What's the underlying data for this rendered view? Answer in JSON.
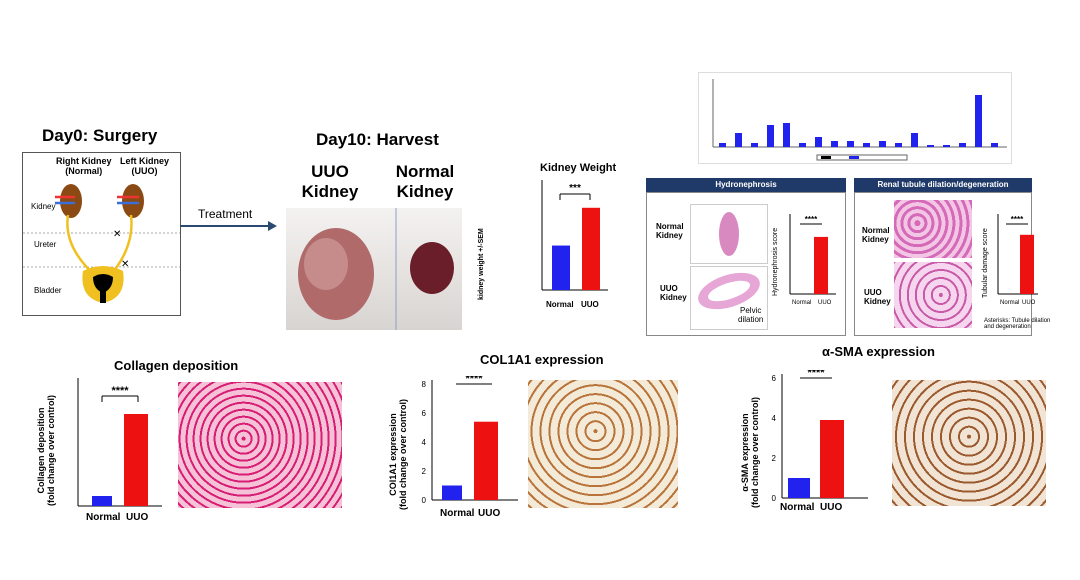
{
  "surgery": {
    "title": "Day0: Surgery",
    "right_kidney": "Right Kidney",
    "right_kidney_sub": "(Normal)",
    "left_kidney": "Left Kidney",
    "left_kidney_sub": "(UUO)",
    "label_kidney": "Kidney",
    "label_ureter": "Ureter",
    "label_bladder": "Bladder"
  },
  "treatment_label": "Treatment",
  "harvest": {
    "title": "Day10: Harvest",
    "uuo_label_1": "UUO",
    "uuo_label_2": "Kidney",
    "normal_label_1": "Normal",
    "normal_label_2": "Kidney"
  },
  "kidney_weight": {
    "title": "Kidney Weight",
    "ylabel": "kidney weight +/-SEM",
    "sig": "***",
    "categories": [
      "Normal",
      "UUO"
    ],
    "values": [
      200,
      370
    ],
    "colors": [
      "#2222ee",
      "#ee1111"
    ]
  },
  "hydronephrosis": {
    "header": "Hydronephrosis",
    "normal_1": "Normal",
    "normal_2": "Kidney",
    "uuo_1": "UUO",
    "uuo_2": "Kidney",
    "pelvic_1": "Pelvic",
    "pelvic_2": "dilation",
    "ylabel": "Hydronephrosis score",
    "sig": "****",
    "categories": [
      "Normal",
      "UUO"
    ],
    "values": [
      0,
      2.7
    ]
  },
  "tubule": {
    "header": "Renal tubule dilation/degeneration",
    "normal_1": "Normal",
    "normal_2": "Kidney",
    "uuo_1": "UUO",
    "uuo_2": "Kidney",
    "ylabel": "Tubular damage score",
    "sig": "****",
    "categories": [
      "Normal",
      "UUO"
    ],
    "values": [
      0,
      2.8
    ],
    "note_1": "Asterisks: Tubule dilation",
    "note_2": "and degeneration"
  },
  "collagen": {
    "title": "Collagen deposition",
    "ylabel_1": "Collagen deposition",
    "ylabel_2": "(fold change over control)",
    "sig": "****",
    "categories": [
      "Normal",
      "UUO"
    ],
    "values": [
      1.0,
      9.2
    ]
  },
  "col1a1": {
    "title": "COL1A1 expression",
    "ylabel_1": "COl1A1 expression",
    "ylabel_2": "(fold change over control)",
    "sig": "****",
    "categories": [
      "Normal",
      "UUO"
    ],
    "values": [
      1.0,
      5.4
    ],
    "yticks": [
      "0",
      "2",
      "4",
      "6",
      "8"
    ]
  },
  "asma": {
    "title": "α-SMA expression",
    "ylabel_1": "α-SMA expression",
    "ylabel_2": "(fold change over control)",
    "sig": "****",
    "categories": [
      "Normal",
      "UUO"
    ],
    "values": [
      1.0,
      3.9
    ],
    "yticks": [
      "0",
      "2",
      "4",
      "6"
    ]
  },
  "chart_data": [
    {
      "type": "bar",
      "title": "Kidney Weight",
      "ylabel": "kidney weight +/-SEM",
      "categories": [
        "Normal",
        "UUO"
      ],
      "values": [
        200,
        370
      ]
    },
    {
      "type": "bar",
      "ylabel": "Hydronephrosis score",
      "categories": [
        "Normal",
        "UUO"
      ],
      "values": [
        0,
        2.7
      ]
    },
    {
      "type": "bar",
      "ylabel": "Tubular damage score",
      "categories": [
        "Normal",
        "UUO"
      ],
      "values": [
        0,
        2.8
      ]
    },
    {
      "type": "bar",
      "title": "Collagen deposition",
      "ylabel": "Collagen deposition (fold change over control)",
      "categories": [
        "Normal",
        "UUO"
      ],
      "values": [
        1.0,
        9.2
      ]
    },
    {
      "type": "bar",
      "title": "COL1A1 expression",
      "ylabel": "COl1A1 expression (fold change over control)",
      "categories": [
        "Normal",
        "UUO"
      ],
      "values": [
        1.0,
        5.4
      ],
      "ylim": [
        0,
        8
      ]
    },
    {
      "type": "bar",
      "title": "α-SMA expression",
      "ylabel": "α-SMA expression (fold change over control)",
      "categories": [
        "Normal",
        "UUO"
      ],
      "values": [
        1.0,
        3.9
      ],
      "ylim": [
        0,
        6
      ]
    }
  ]
}
